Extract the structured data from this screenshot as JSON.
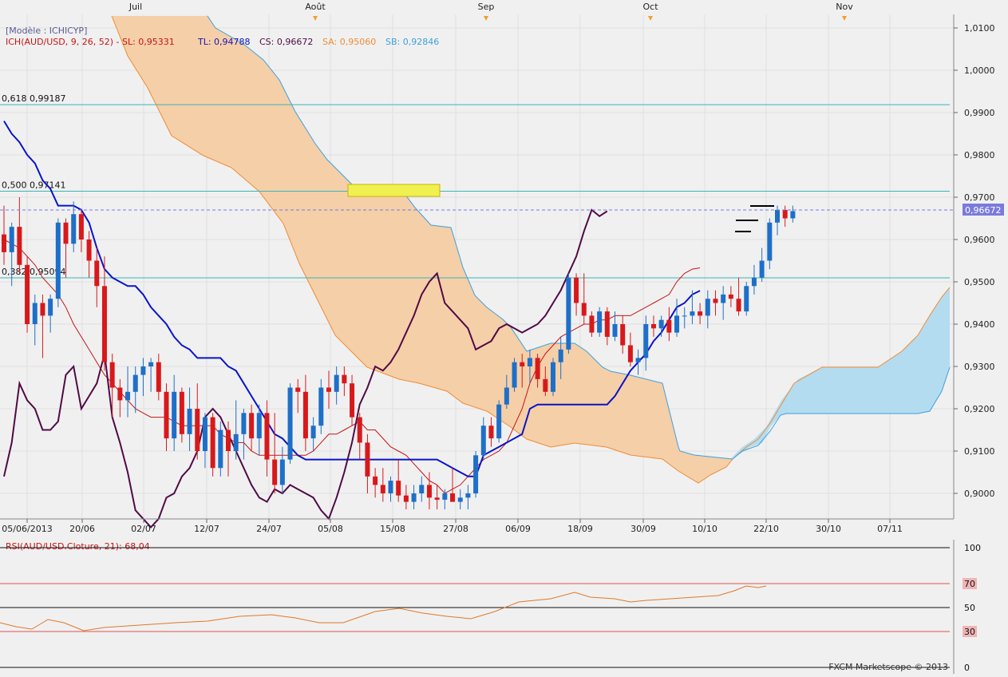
{
  "months": [
    "Juil",
    "Août",
    "Sep",
    "Oct",
    "Nov"
  ],
  "x_dates": [
    "05/06/2013",
    "20/06",
    "02/07",
    "12/07",
    "24/07",
    "05/08",
    "15/08",
    "27/08",
    "06/09",
    "18/09",
    "30/09",
    "10/10",
    "22/10",
    "30/10",
    "07/11"
  ],
  "price_axis": {
    "ticks": [
      "1,0100",
      "1,0000",
      "0,9900",
      "0,9800",
      "0,9700",
      "0,9600",
      "0,9500",
      "0,9400",
      "0,9300",
      "0,9200",
      "0,9100",
      "0,9000"
    ],
    "current": "0,96672"
  },
  "legend": {
    "model": "[Modèle : ICHICYP]",
    "ich": "ICH(AUD/USD, 9, 26, 52)  -  SL: 0,95331",
    "tl": "TL: 0,94788",
    "cs": "CS: 0,96672",
    "sa": "SA: 0,95060",
    "sb": "SB: 0,92846"
  },
  "fib": [
    {
      "label": "0,618  0,99187",
      "value": 0.99187
    },
    {
      "label": "0,500  0,97141",
      "value": 0.97141
    },
    {
      "label": "0,382  0,95094",
      "value": 0.95094
    }
  ],
  "rsi": {
    "label": "RSI(AUD/USD.Cloture, 21): 68,04",
    "levels": [
      "100",
      "70",
      "50",
      "30",
      "0"
    ]
  },
  "copyright": "FXCM Marketscope © 2013",
  "colors": {
    "up": "#1e6fc8",
    "down": "#d7191c",
    "tenkan": "#c81414",
    "kijun": "#0a14c8",
    "chikou": "#500a46",
    "spanA": "#f08c32",
    "spanB": "#3ca0dc",
    "kumo_bear": "#f5cfa8",
    "kumo_bull": "#b4dcf0",
    "fib": "#3cb4b4",
    "rsi": "#e07828"
  },
  "chart_data": {
    "type": "candlestick",
    "title": "AUD/USD",
    "ylim": [
      0.897,
      1.011
    ],
    "ohlc": [
      [
        0.9612,
        0.968,
        0.954,
        0.957
      ],
      [
        0.957,
        0.964,
        0.949,
        0.963
      ],
      [
        0.963,
        0.97,
        0.952,
        0.954
      ],
      [
        0.954,
        0.956,
        0.938,
        0.94
      ],
      [
        0.94,
        0.947,
        0.935,
        0.945
      ],
      [
        0.945,
        0.947,
        0.932,
        0.942
      ],
      [
        0.942,
        0.947,
        0.938,
        0.946
      ],
      [
        0.946,
        0.965,
        0.944,
        0.964
      ],
      [
        0.964,
        0.965,
        0.951,
        0.959
      ],
      [
        0.959,
        0.969,
        0.957,
        0.966
      ],
      [
        0.966,
        0.967,
        0.957,
        0.96
      ],
      [
        0.96,
        0.962,
        0.951,
        0.955
      ],
      [
        0.955,
        0.958,
        0.944,
        0.949
      ],
      [
        0.949,
        0.956,
        0.929,
        0.931
      ],
      [
        0.931,
        0.933,
        0.918,
        0.925
      ],
      [
        0.925,
        0.927,
        0.918,
        0.922
      ],
      [
        0.922,
        0.93,
        0.918,
        0.924
      ],
      [
        0.924,
        0.93,
        0.919,
        0.928
      ],
      [
        0.928,
        0.932,
        0.923,
        0.93
      ],
      [
        0.93,
        0.932,
        0.924,
        0.931
      ],
      [
        0.931,
        0.933,
        0.922,
        0.924
      ],
      [
        0.924,
        0.926,
        0.91,
        0.913
      ],
      [
        0.913,
        0.928,
        0.91,
        0.924
      ],
      [
        0.924,
        0.925,
        0.912,
        0.914
      ],
      [
        0.914,
        0.925,
        0.91,
        0.92
      ],
      [
        0.92,
        0.926,
        0.908,
        0.91
      ],
      [
        0.91,
        0.919,
        0.906,
        0.918
      ],
      [
        0.918,
        0.919,
        0.904,
        0.906
      ],
      [
        0.906,
        0.917,
        0.904,
        0.915
      ],
      [
        0.915,
        0.917,
        0.904,
        0.91
      ],
      [
        0.91,
        0.922,
        0.908,
        0.914
      ],
      [
        0.914,
        0.92,
        0.908,
        0.919
      ],
      [
        0.919,
        0.921,
        0.91,
        0.913
      ],
      [
        0.913,
        0.921,
        0.909,
        0.919
      ],
      [
        0.919,
        0.922,
        0.904,
        0.908
      ],
      [
        0.908,
        0.919,
        0.9,
        0.902
      ],
      [
        0.902,
        0.911,
        0.9,
        0.908
      ],
      [
        0.908,
        0.926,
        0.907,
        0.925
      ],
      [
        0.925,
        0.927,
        0.919,
        0.924
      ],
      [
        0.924,
        0.928,
        0.91,
        0.913
      ],
      [
        0.913,
        0.918,
        0.91,
        0.916
      ],
      [
        0.916,
        0.927,
        0.914,
        0.925
      ],
      [
        0.925,
        0.929,
        0.92,
        0.924
      ],
      [
        0.924,
        0.93,
        0.921,
        0.928
      ],
      [
        0.928,
        0.93,
        0.923,
        0.926
      ],
      [
        0.926,
        0.928,
        0.916,
        0.918
      ],
      [
        0.918,
        0.919,
        0.908,
        0.912
      ],
      [
        0.912,
        0.914,
        0.9,
        0.904
      ],
      [
        0.904,
        0.906,
        0.899,
        0.902
      ],
      [
        0.902,
        0.906,
        0.898,
        0.9
      ],
      [
        0.9,
        0.904,
        0.898,
        0.903
      ],
      [
        0.903,
        0.908,
        0.898,
        0.8995
      ],
      [
        0.8995,
        0.902,
        0.896,
        0.898
      ],
      [
        0.898,
        0.902,
        0.896,
        0.9
      ],
      [
        0.9,
        0.904,
        0.898,
        0.902
      ],
      [
        0.902,
        0.905,
        0.896,
        0.899
      ],
      [
        0.899,
        0.902,
        0.896,
        0.8985
      ],
      [
        0.8985,
        0.901,
        0.896,
        0.9
      ],
      [
        0.9,
        0.906,
        0.898,
        0.898
      ],
      [
        0.898,
        0.901,
        0.895,
        0.899
      ],
      [
        0.899,
        0.902,
        0.896,
        0.9
      ],
      [
        0.9,
        0.91,
        0.899,
        0.909
      ],
      [
        0.909,
        0.918,
        0.908,
        0.916
      ],
      [
        0.916,
        0.918,
        0.911,
        0.913
      ],
      [
        0.913,
        0.922,
        0.912,
        0.921
      ],
      [
        0.921,
        0.928,
        0.92,
        0.925
      ],
      [
        0.925,
        0.932,
        0.924,
        0.931
      ],
      [
        0.931,
        0.933,
        0.925,
        0.93
      ],
      [
        0.93,
        0.934,
        0.926,
        0.932
      ],
      [
        0.932,
        0.933,
        0.925,
        0.927
      ],
      [
        0.927,
        0.93,
        0.923,
        0.924
      ],
      [
        0.924,
        0.932,
        0.923,
        0.931
      ],
      [
        0.931,
        0.937,
        0.927,
        0.934
      ],
      [
        0.934,
        0.952,
        0.933,
        0.951
      ],
      [
        0.951,
        0.952,
        0.942,
        0.945
      ],
      [
        0.945,
        0.952,
        0.94,
        0.942
      ],
      [
        0.942,
        0.943,
        0.937,
        0.938
      ],
      [
        0.938,
        0.944,
        0.937,
        0.943
      ],
      [
        0.943,
        0.944,
        0.935,
        0.937
      ],
      [
        0.937,
        0.943,
        0.936,
        0.94
      ],
      [
        0.94,
        0.942,
        0.933,
        0.935
      ],
      [
        0.935,
        0.938,
        0.93,
        0.931
      ],
      [
        0.931,
        0.934,
        0.928,
        0.932
      ],
      [
        0.932,
        0.942,
        0.929,
        0.94
      ],
      [
        0.94,
        0.942,
        0.937,
        0.939
      ],
      [
        0.939,
        0.942,
        0.937,
        0.941
      ],
      [
        0.941,
        0.944,
        0.936,
        0.938
      ],
      [
        0.938,
        0.946,
        0.937,
        0.942
      ],
      [
        0.942,
        0.944,
        0.939,
        0.942
      ],
      [
        0.942,
        0.948,
        0.94,
        0.943
      ],
      [
        0.943,
        0.945,
        0.94,
        0.942
      ],
      [
        0.942,
        0.948,
        0.939,
        0.946
      ],
      [
        0.946,
        0.948,
        0.942,
        0.945
      ],
      [
        0.945,
        0.949,
        0.941,
        0.947
      ],
      [
        0.947,
        0.949,
        0.944,
        0.946
      ],
      [
        0.946,
        0.951,
        0.942,
        0.943
      ],
      [
        0.943,
        0.95,
        0.942,
        0.949
      ],
      [
        0.949,
        0.954,
        0.947,
        0.951
      ],
      [
        0.951,
        0.958,
        0.95,
        0.955
      ],
      [
        0.955,
        0.965,
        0.953,
        0.964
      ],
      [
        0.964,
        0.968,
        0.961,
        0.967
      ],
      [
        0.967,
        0.968,
        0.963,
        0.965
      ],
      [
        0.965,
        0.968,
        0.964,
        0.9667
      ]
    ],
    "tenkan": [
      0.96,
      0.959,
      0.958,
      0.956,
      0.954,
      0.951,
      0.949,
      0.947,
      0.944,
      0.94,
      0.937,
      0.934,
      0.931,
      0.928,
      0.926,
      0.924,
      0.922,
      0.92,
      0.919,
      0.918,
      0.918,
      0.918,
      0.917,
      0.916,
      0.916,
      0.916,
      0.916,
      0.916,
      0.914,
      0.913,
      0.912,
      0.912,
      0.91,
      0.909,
      0.909,
      0.909,
      0.909,
      0.909,
      0.909,
      0.909,
      0.91,
      0.912,
      0.914,
      0.914,
      0.915,
      0.916,
      0.917,
      0.915,
      0.915,
      0.913,
      0.911,
      0.91,
      0.909,
      0.907,
      0.905,
      0.903,
      0.902,
      0.9,
      0.901,
      0.902,
      0.904,
      0.906,
      0.908,
      0.909,
      0.91,
      0.912,
      0.916,
      0.92,
      0.926,
      0.93,
      0.933,
      0.935,
      0.937,
      0.938,
      0.939,
      0.94,
      0.94,
      0.941,
      0.941,
      0.942,
      0.942,
      0.942,
      0.943,
      0.944,
      0.945,
      0.946,
      0.947,
      0.95,
      0.952,
      0.953,
      0.9533
    ],
    "kijun": [
      0.988,
      0.985,
      0.983,
      0.98,
      0.978,
      0.974,
      0.972,
      0.968,
      0.968,
      0.968,
      0.967,
      0.964,
      0.958,
      0.953,
      0.951,
      0.95,
      0.949,
      0.949,
      0.947,
      0.944,
      0.942,
      0.94,
      0.937,
      0.935,
      0.934,
      0.932,
      0.932,
      0.932,
      0.932,
      0.93,
      0.929,
      0.926,
      0.923,
      0.92,
      0.917,
      0.914,
      0.913,
      0.911,
      0.909,
      0.908,
      0.908,
      0.908,
      0.908,
      0.908,
      0.908,
      0.908,
      0.908,
      0.908,
      0.908,
      0.908,
      0.908,
      0.908,
      0.908,
      0.908,
      0.908,
      0.908,
      0.908,
      0.907,
      0.906,
      0.905,
      0.904,
      0.904,
      0.909,
      0.91,
      0.911,
      0.912,
      0.913,
      0.914,
      0.92,
      0.921,
      0.921,
      0.921,
      0.921,
      0.921,
      0.921,
      0.921,
      0.921,
      0.921,
      0.921,
      0.923,
      0.926,
      0.929,
      0.931,
      0.933,
      0.936,
      0.938,
      0.941,
      0.944,
      0.945,
      0.947,
      0.9479
    ],
    "chikou": [
      0.904,
      0.912,
      0.926,
      0.922,
      0.92,
      0.915,
      0.915,
      0.917,
      0.928,
      0.93,
      0.92,
      0.923,
      0.926,
      0.933,
      0.918,
      0.912,
      0.905,
      0.896,
      0.894,
      0.892,
      0.894,
      0.899,
      0.9,
      0.904,
      0.906,
      0.91,
      0.918,
      0.92,
      0.918,
      0.914,
      0.91,
      0.906,
      0.902,
      0.899,
      0.898,
      0.901,
      0.9,
      0.902,
      0.901,
      0.9,
      0.899,
      0.896,
      0.894,
      0.899,
      0.905,
      0.912,
      0.921,
      0.925,
      0.93,
      0.929,
      0.931,
      0.934,
      0.938,
      0.942,
      0.947,
      0.95,
      0.952,
      0.945,
      0.943,
      0.941,
      0.939,
      0.934,
      0.935,
      0.936,
      0.939,
      0.94,
      0.939,
      0.938,
      0.939,
      0.94,
      0.942,
      0.945,
      0.948,
      0.952,
      0.956,
      0.962,
      0.967,
      0.9655,
      0.9667
    ]
  }
}
